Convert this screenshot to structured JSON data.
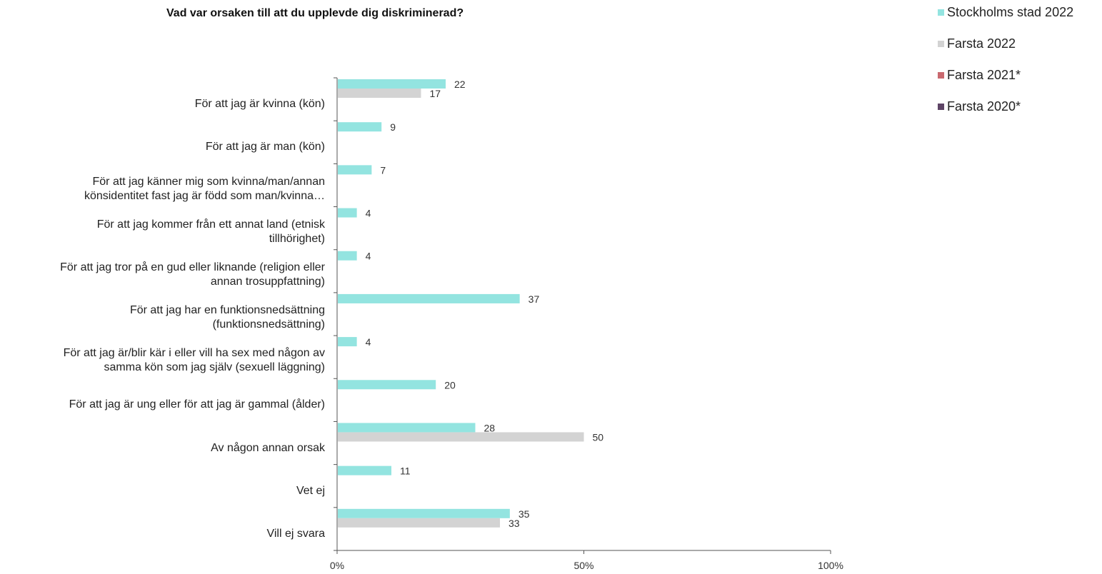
{
  "chart_data": {
    "type": "bar",
    "orientation": "horizontal",
    "title": "Vad var orsaken till att du upplevde dig diskriminerad?",
    "categories": [
      [
        "För att jag är kvinna (kön)"
      ],
      [
        "För att jag är man (kön)"
      ],
      [
        "För att jag känner mig som kvinna/man/annan",
        "könsidentitet fast jag är född som man/kvinna…"
      ],
      [
        "För att jag kommer från ett annat land (etnisk",
        "tillhörighet)"
      ],
      [
        "För att jag tror på en gud eller liknande (religion eller",
        "annan trosuppfattning)"
      ],
      [
        "För att jag har en funktionsnedsättning",
        "(funktionsnedsättning)"
      ],
      [
        "För att jag är/blir kär i eller vill ha sex med någon av",
        "samma kön som jag själv (sexuell läggning)"
      ],
      [
        "För att jag är ung eller för att jag är gammal (ålder)"
      ],
      [
        "Av någon annan orsak"
      ],
      [
        "Vet ej"
      ],
      [
        "Vill ej svara"
      ]
    ],
    "series": [
      {
        "name": "Stockholms stad 2022",
        "color": "#93e4e0",
        "values": [
          22,
          9,
          7,
          4,
          4,
          37,
          4,
          20,
          28,
          11,
          35
        ]
      },
      {
        "name": "Farsta 2022",
        "color": "#d3d3d3",
        "values": [
          17,
          null,
          null,
          null,
          null,
          null,
          null,
          null,
          50,
          null,
          33
        ]
      },
      {
        "name": "Farsta 2021*",
        "color": "#c9696f",
        "values": [
          null,
          null,
          null,
          null,
          null,
          null,
          null,
          null,
          null,
          null,
          null
        ]
      },
      {
        "name": "Farsta 2020*",
        "color": "#5e4566",
        "values": [
          null,
          null,
          null,
          null,
          null,
          null,
          null,
          null,
          null,
          null,
          null
        ]
      }
    ],
    "xlim": [
      0,
      100
    ],
    "xticks": [
      "0%",
      "50%",
      "100%"
    ],
    "grid": false,
    "legend_position": "top-right"
  }
}
